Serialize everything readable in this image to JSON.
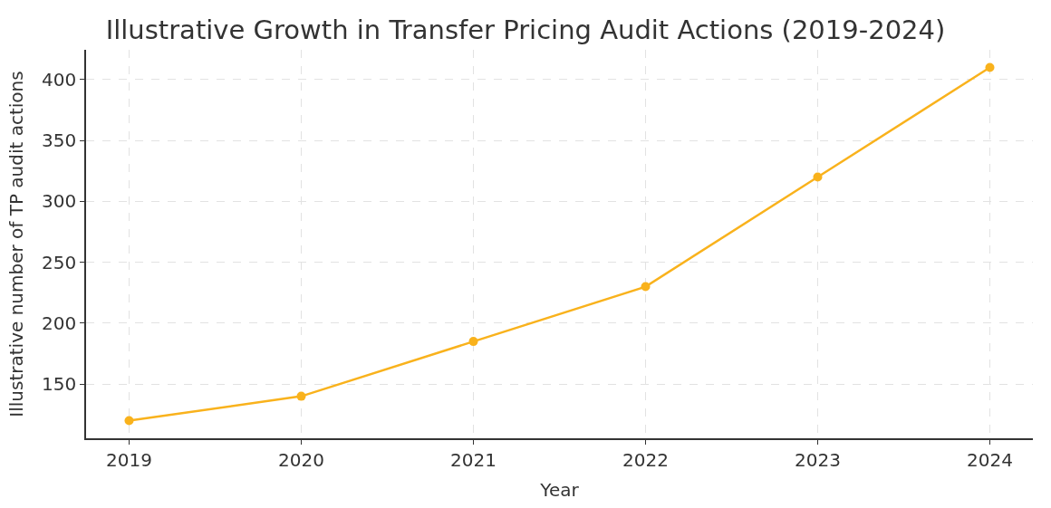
{
  "chart_data": {
    "type": "line",
    "title": "Illustrative Growth in Transfer Pricing Audit Actions (2019-2024)",
    "xlabel": "Year",
    "ylabel": "Illustrative number of TP audit actions",
    "x": [
      2019,
      2020,
      2021,
      2022,
      2023,
      2024
    ],
    "series": [
      {
        "color": "#f9b21c",
        "values": [
          120,
          140,
          185,
          230,
          320,
          410
        ]
      }
    ],
    "xlim": [
      2018.75,
      2024.25
    ],
    "xticks": [
      2019,
      2020,
      2021,
      2022,
      2023,
      2024
    ],
    "ylim": [
      105.5,
      424.5
    ],
    "yticks": [
      150,
      200,
      250,
      300,
      350,
      400
    ],
    "grid": true,
    "marker": "circle",
    "line_style": "solid"
  }
}
